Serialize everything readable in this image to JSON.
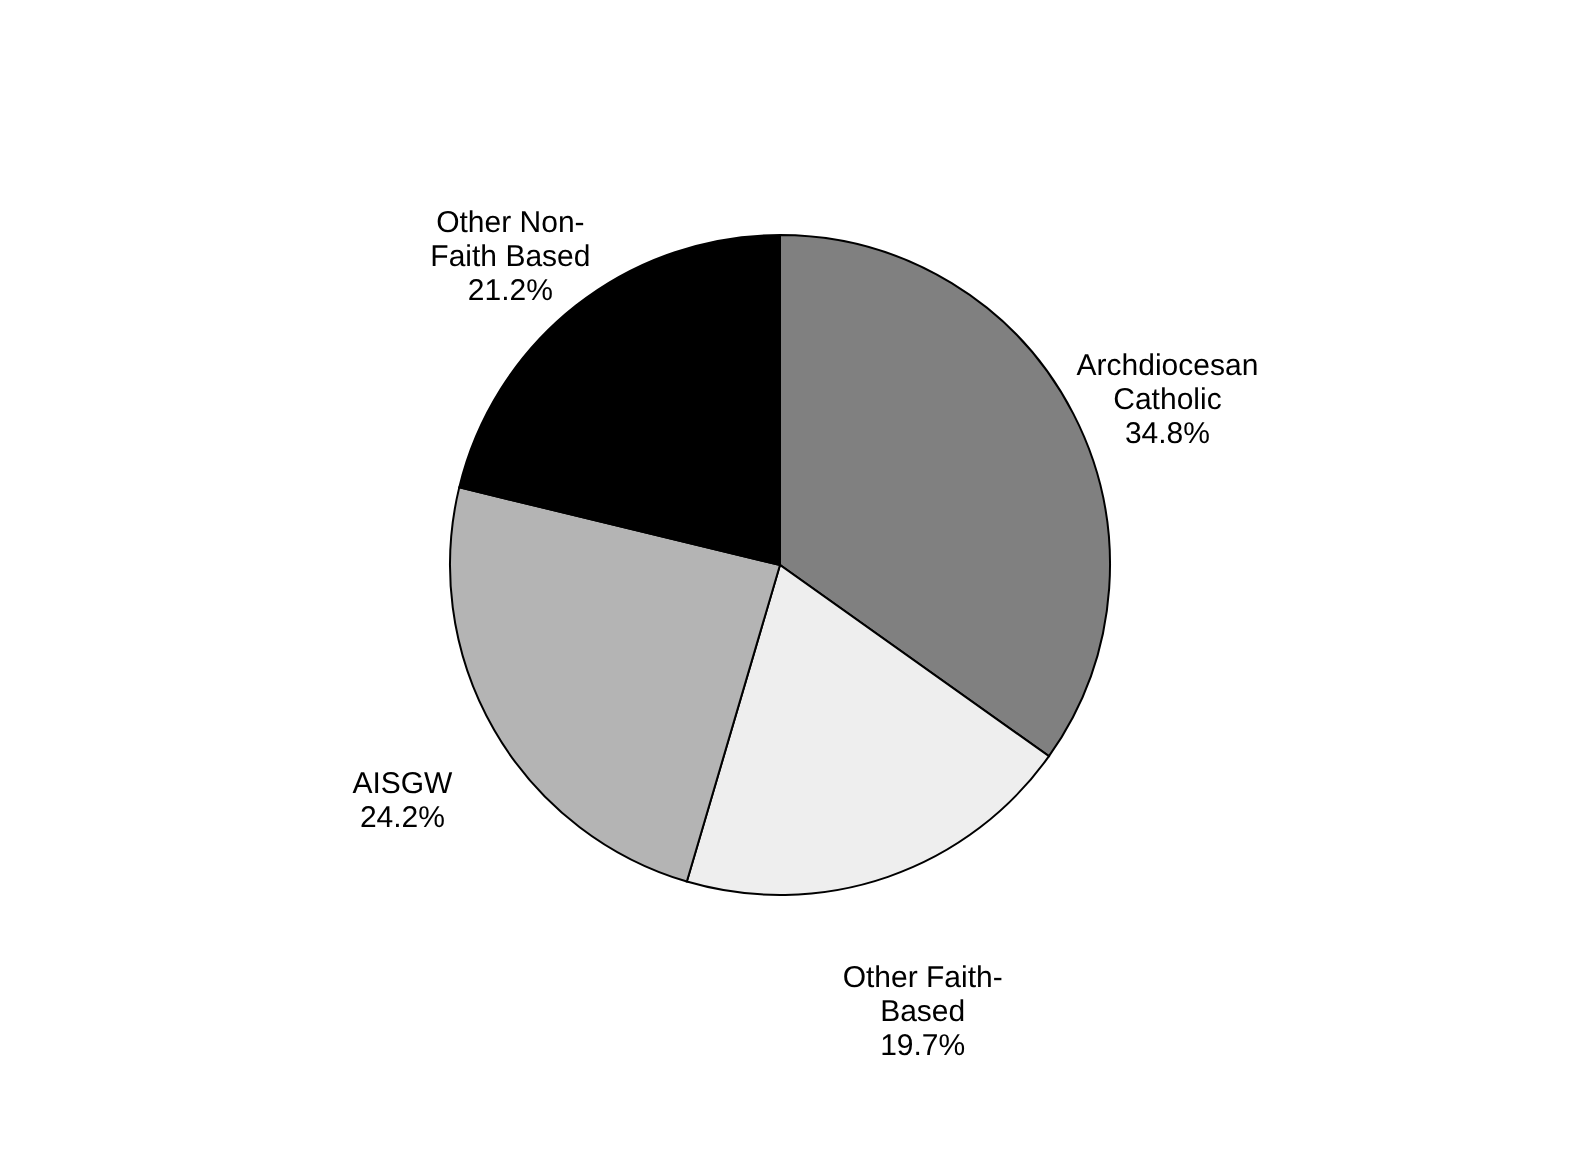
{
  "chart_data": {
    "type": "pie",
    "categories": [
      "Archdiocesan Catholic",
      "Other Faith-Based",
      "AISGW",
      "Other Non-Faith Based"
    ],
    "values": [
      34.8,
      19.7,
      24.2,
      21.2
    ],
    "value_labels": [
      "34.8%",
      "19.7%",
      "24.2%",
      "21.2%"
    ],
    "colors": [
      "#808080",
      "#eeeeee",
      "#b4b4b4",
      "#000000"
    ],
    "legend": false
  }
}
